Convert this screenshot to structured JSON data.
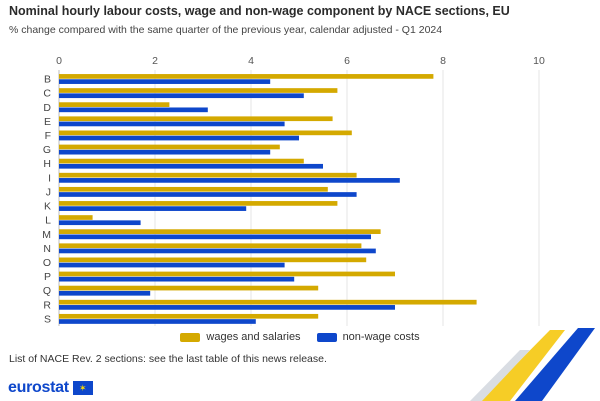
{
  "header": {
    "title": "Nominal hourly labour costs, wage and non-wage component by NACE sections, EU",
    "subtitle": "% change compared with the same quarter of the previous year, calendar adjusted - Q1 2024"
  },
  "footer": {
    "note": "List of NACE Rev. 2 sections: see the last table of this news release.",
    "logo_text": "eurostat",
    "flag_icon": "eu-flag-icon"
  },
  "colors": {
    "wages": "#d4a900",
    "nonwage": "#0e47cb",
    "grid": "#e6e6e6"
  },
  "chart_data": {
    "type": "bar",
    "orientation": "horizontal",
    "title": "Nominal hourly labour costs, wage and non-wage component by NACE sections, EU",
    "subtitle": "% change compared with the same quarter of the previous year, calendar adjusted - Q1 2024",
    "categories": [
      "B",
      "C",
      "D",
      "E",
      "F",
      "G",
      "H",
      "I",
      "J",
      "K",
      "L",
      "M",
      "N",
      "O",
      "P",
      "Q",
      "R",
      "S"
    ],
    "series": [
      {
        "name": "wages and salaries",
        "color": "#d4a900",
        "values": [
          7.8,
          5.8,
          2.3,
          5.7,
          6.1,
          4.6,
          5.1,
          6.2,
          5.6,
          5.8,
          0.7,
          6.7,
          6.3,
          6.4,
          7.0,
          5.4,
          8.7,
          5.4
        ]
      },
      {
        "name": "non-wage costs",
        "color": "#0e47cb",
        "values": [
          4.4,
          5.1,
          3.1,
          4.7,
          5.0,
          4.4,
          5.5,
          7.1,
          6.2,
          3.9,
          1.7,
          6.5,
          6.6,
          4.7,
          4.9,
          1.9,
          7.0,
          4.1
        ]
      }
    ],
    "xlim": [
      0,
      10
    ],
    "xticks": [
      0,
      2,
      4,
      6,
      8,
      10
    ],
    "grid": true,
    "legend_position": "bottom"
  }
}
